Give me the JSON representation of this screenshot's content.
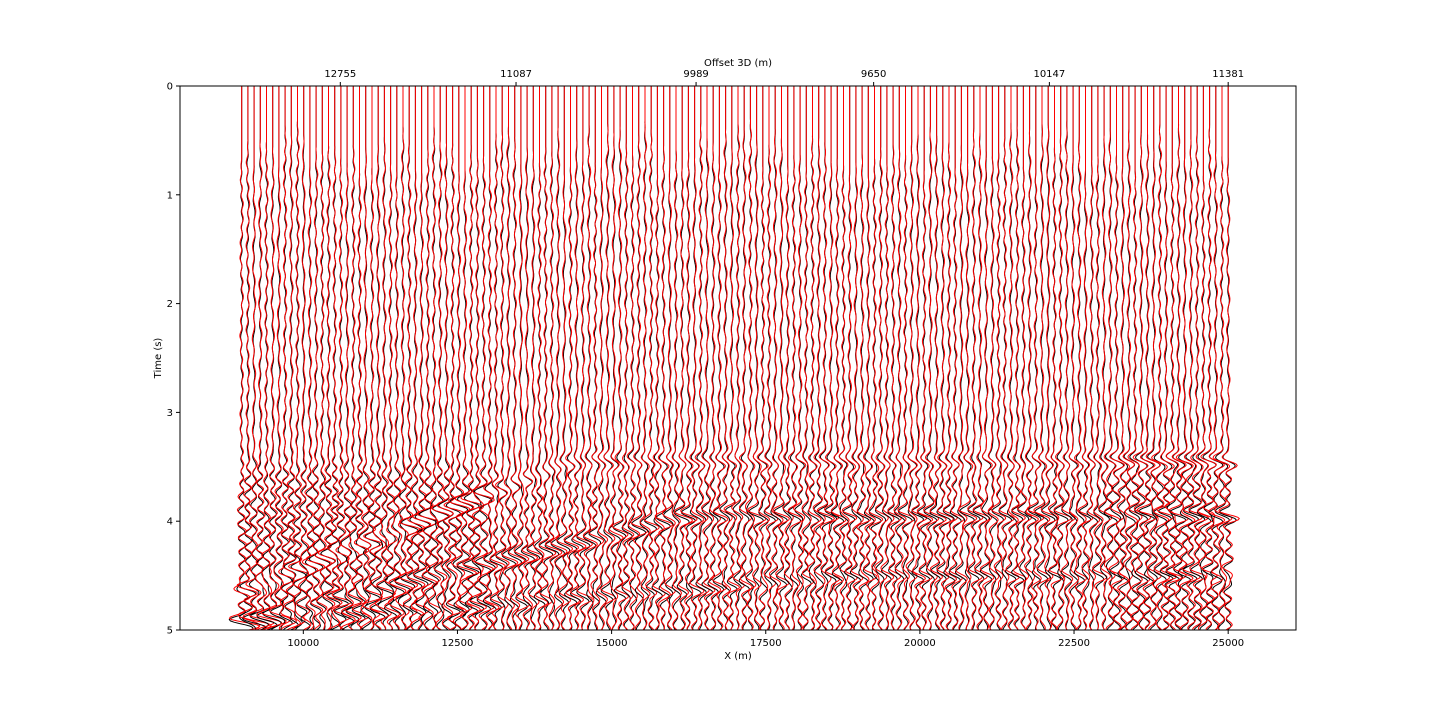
{
  "chart_data": {
    "type": "line",
    "subtype": "seismic-wiggle-traces",
    "xlabel": "X (m)",
    "ylabel": "Time (s)",
    "top_xlabel": "Offset 3D (m)",
    "xlim": [
      8000,
      26100
    ],
    "ylim": [
      5,
      0
    ],
    "x_ticks": [
      {
        "value": 10000,
        "label": "10000"
      },
      {
        "value": 12500,
        "label": "12500"
      },
      {
        "value": 15000,
        "label": "15000"
      },
      {
        "value": 17500,
        "label": "17500"
      },
      {
        "value": 20000,
        "label": "20000"
      },
      {
        "value": 22500,
        "label": "22500"
      },
      {
        "value": 25000,
        "label": "25000"
      }
    ],
    "y_ticks": [
      {
        "value": 0,
        "label": "0"
      },
      {
        "value": 1,
        "label": "1"
      },
      {
        "value": 2,
        "label": "2"
      },
      {
        "value": 3,
        "label": "3"
      },
      {
        "value": 4,
        "label": "4"
      },
      {
        "value": 5,
        "label": "5"
      }
    ],
    "top_ticks": [
      {
        "x": 10600,
        "label": "12755"
      },
      {
        "x": 13450,
        "label": "11087"
      },
      {
        "x": 16370,
        "label": "9989"
      },
      {
        "x": 19250,
        "label": "9650"
      },
      {
        "x": 22100,
        "label": "10147"
      },
      {
        "x": 25000,
        "label": "11381"
      }
    ],
    "traces": {
      "x_start": 9000,
      "x_end": 25000,
      "count": 160,
      "t_start": 0,
      "t_end": 5
    },
    "series": [
      {
        "color": "#000000"
      },
      {
        "color": "#ff0000"
      }
    ],
    "grid": false
  }
}
